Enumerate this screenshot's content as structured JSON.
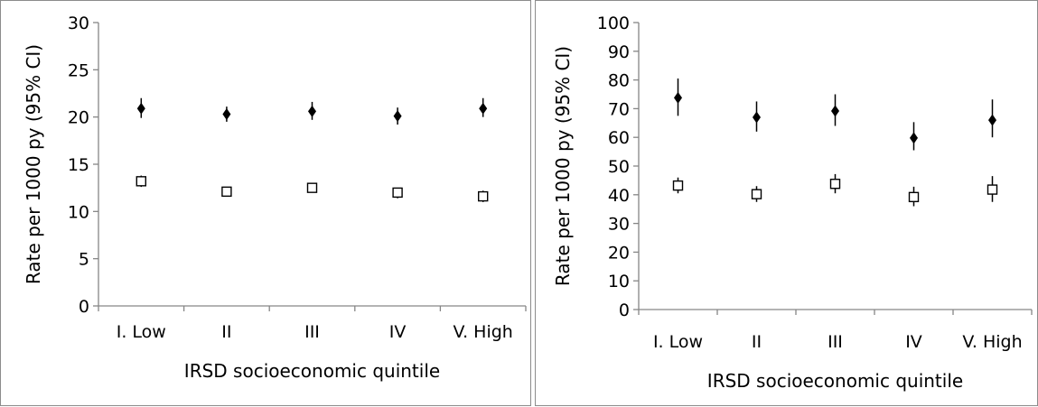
{
  "chart_data": [
    {
      "type": "scatter",
      "title": "",
      "xlabel": "IRSD socioeconomic quintile",
      "ylabel": "Rate per 1000 py (95% CI)",
      "categories": [
        "I. Low",
        "II",
        "III",
        "IV",
        "V. High"
      ],
      "ylim": [
        0,
        30
      ],
      "yticks": [
        0,
        5,
        10,
        15,
        20,
        25,
        30
      ],
      "grid": false,
      "legend": "none",
      "series": [
        {
          "marker": "filled-diamond",
          "color": "#000000",
          "values": [
            20.9,
            20.3,
            20.6,
            20.1,
            20.9
          ],
          "ci_low": [
            19.9,
            19.5,
            19.7,
            19.2,
            20.0
          ],
          "ci_high": [
            22.0,
            21.1,
            21.6,
            21.0,
            22.0
          ]
        },
        {
          "marker": "open-square",
          "color": "#000000",
          "values": [
            13.2,
            12.1,
            12.5,
            12.0,
            11.6
          ],
          "ci_low": [
            12.6,
            11.6,
            12.0,
            11.4,
            11.0
          ],
          "ci_high": [
            13.8,
            12.6,
            13.0,
            12.5,
            12.2
          ]
        }
      ]
    },
    {
      "type": "scatter",
      "title": "",
      "xlabel": "IRSD socioeconomic quintile",
      "ylabel": "Rate per 1000 py (95% CI)",
      "categories": [
        "I. Low",
        "II",
        "III",
        "IV",
        "V. High"
      ],
      "ylim": [
        0,
        100
      ],
      "yticks": [
        0,
        10,
        20,
        30,
        40,
        50,
        60,
        70,
        80,
        90,
        100
      ],
      "grid": false,
      "legend": "none",
      "series": [
        {
          "marker": "filled-diamond",
          "color": "#000000",
          "values": [
            73.8,
            67.0,
            69.2,
            59.8,
            66.0
          ],
          "ci_low": [
            67.5,
            62.0,
            64.0,
            55.5,
            60.0
          ],
          "ci_high": [
            80.5,
            72.5,
            75.0,
            65.3,
            73.2
          ]
        },
        {
          "marker": "open-square",
          "color": "#000000",
          "values": [
            43.2,
            40.2,
            43.8,
            39.2,
            41.8
          ],
          "ci_low": [
            40.5,
            37.5,
            40.5,
            36.0,
            37.5
          ],
          "ci_high": [
            46.0,
            43.0,
            47.2,
            42.8,
            46.5
          ]
        }
      ]
    }
  ]
}
